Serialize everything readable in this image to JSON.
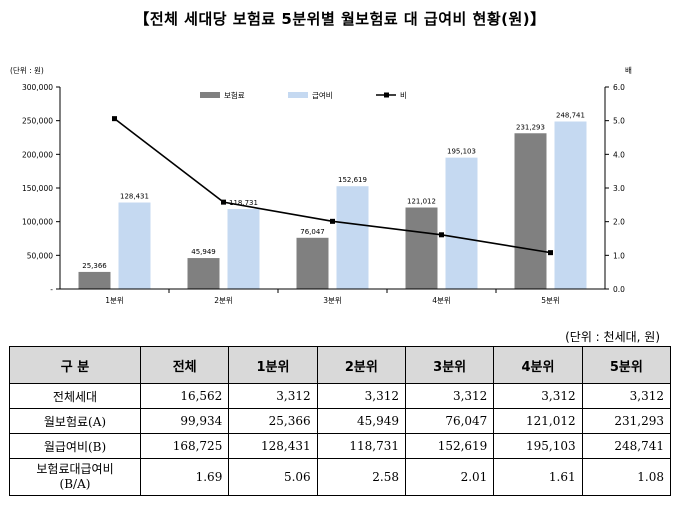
{
  "title": "【전체 세대당 보험료 5분위별 월보험료 대 급여비 현황(원)】",
  "chart_data": {
    "type": "bar",
    "categories": [
      "1분위",
      "2분위",
      "3분위",
      "4분위",
      "5분위"
    ],
    "series": [
      {
        "name": "보험료",
        "type": "bar",
        "color": "#808080",
        "values": [
          25366,
          45949,
          76047,
          121012,
          231293
        ],
        "labels": [
          "25,366",
          "45,949",
          "76,047",
          "121,012",
          "231,293"
        ]
      },
      {
        "name": "급여비",
        "type": "bar",
        "color": "#c5d9f1",
        "values": [
          128431,
          118731,
          152619,
          195103,
          248741
        ],
        "labels": [
          "128,431",
          "118,731",
          "152,619",
          "195,103",
          "248,741"
        ]
      },
      {
        "name": "비",
        "type": "line",
        "axis": "right",
        "color": "#000000",
        "values": [
          5.06,
          2.58,
          2.01,
          1.61,
          1.08
        ]
      }
    ],
    "y_left": {
      "label": "(단위 : 원)",
      "min": 0,
      "max": 300000,
      "ticks": [
        "-",
        "50,000",
        "100,000",
        "150,000",
        "200,000",
        "250,000",
        "300,000"
      ]
    },
    "y_right": {
      "label": "배",
      "min": 0,
      "max": 6,
      "ticks": [
        "0.0",
        "1.0",
        "2.0",
        "3.0",
        "4.0",
        "5.0",
        "6.0"
      ]
    },
    "legend_position": "top"
  },
  "table": {
    "unit_note": "(단위 : 천세대, 원)",
    "headers": [
      "구  분",
      "전체",
      "1분위",
      "2분위",
      "3분위",
      "4분위",
      "5분위"
    ],
    "rows": [
      {
        "label": "전체세대",
        "label2": "",
        "values": [
          "16,562",
          "3,312",
          "3,312",
          "3,312",
          "3,312",
          "3,312"
        ]
      },
      {
        "label": "월보험료(A)",
        "label2": "",
        "values": [
          "99,934",
          "25,366",
          "45,949",
          "76,047",
          "121,012",
          "231,293"
        ]
      },
      {
        "label": "월급여비(B)",
        "label2": "",
        "values": [
          "168,725",
          "128,431",
          "118,731",
          "152,619",
          "195,103",
          "248,741"
        ]
      },
      {
        "label": "보험료대급여비",
        "label2": "(B/A)",
        "values": [
          "1.69",
          "5.06",
          "2.58",
          "2.01",
          "1.61",
          "1.08"
        ]
      }
    ]
  }
}
